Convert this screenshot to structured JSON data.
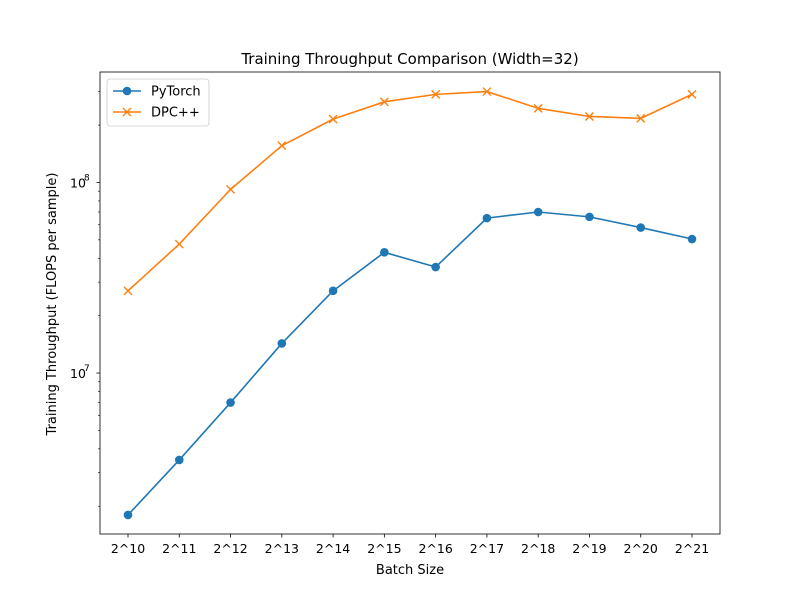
{
  "chart_data": {
    "type": "line",
    "title": "Training Throughput Comparison (Width=32)",
    "xlabel": "Batch Size",
    "ylabel": "Training Throughput (FLOPS per sample)",
    "yscale": "log",
    "ylim": [
      1430000,
      380000000
    ],
    "categories": [
      "2^10",
      "2^11",
      "2^12",
      "2^13",
      "2^14",
      "2^15",
      "2^16",
      "2^17",
      "2^18",
      "2^19",
      "2^20",
      "2^21"
    ],
    "y_major_ticks": [
      {
        "base": "10",
        "exp": "7",
        "value": 10000000
      },
      {
        "base": "10",
        "exp": "8",
        "value": 100000000
      }
    ],
    "legend": {
      "position": "upper-left"
    },
    "grid": false,
    "series": [
      {
        "name": "PyTorch",
        "color": "#1f77b4",
        "marker": "circle",
        "values": [
          1800000,
          3500000,
          7000000,
          14300000,
          27000000,
          43000000,
          36000000,
          65000000,
          70000000,
          66000000,
          58000000,
          50500000
        ]
      },
      {
        "name": "DPC++",
        "color": "#ff7f0e",
        "marker": "x",
        "values": [
          27000000,
          47500000,
          92000000,
          156000000,
          215000000,
          265000000,
          290000000,
          300000000,
          245000000,
          222000000,
          217000000,
          290000000
        ]
      }
    ]
  }
}
